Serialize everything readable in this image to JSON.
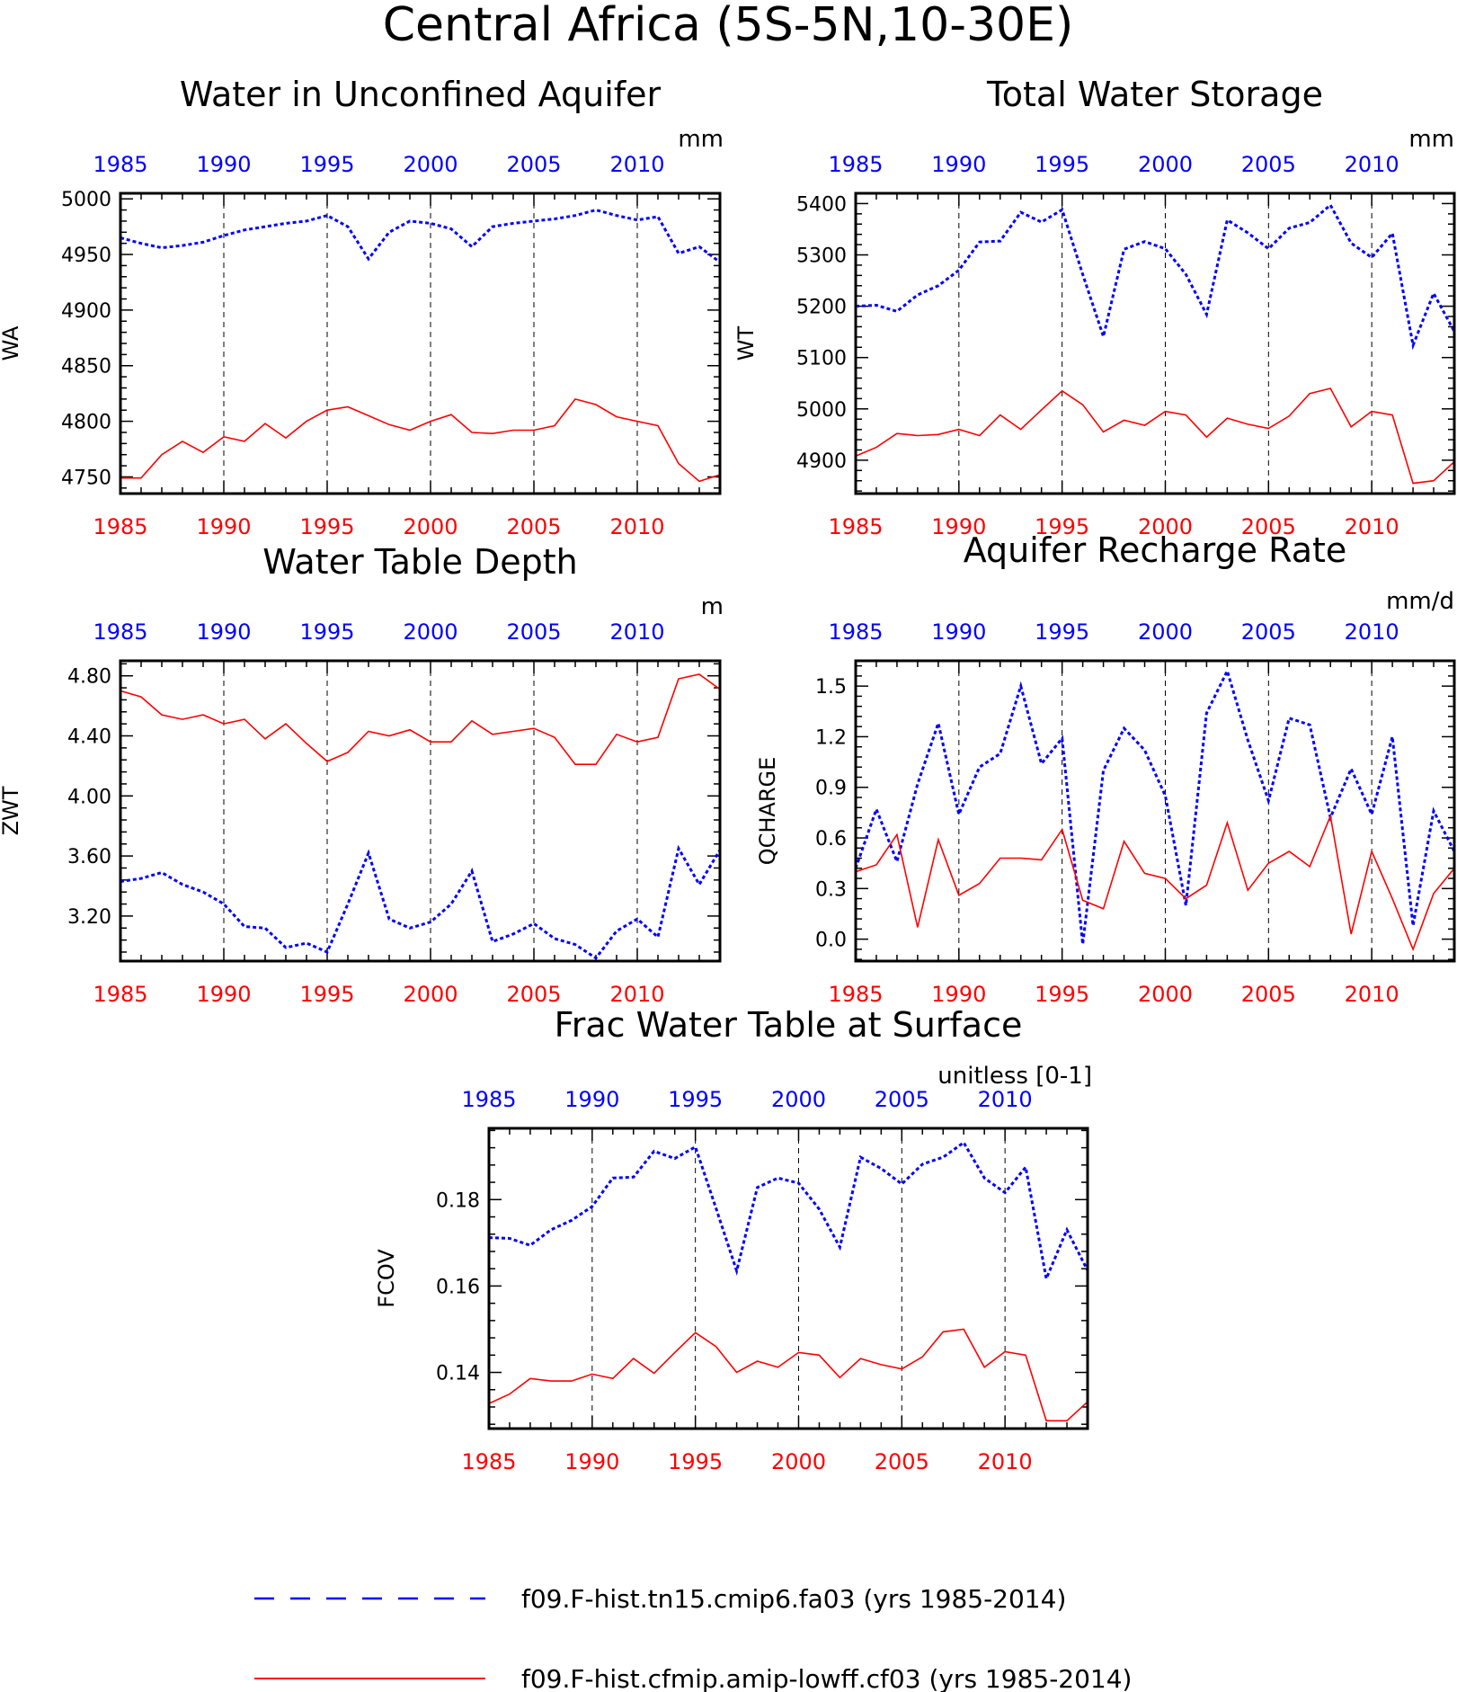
{
  "main_title": "Central Africa (5S-5N,10-30E)",
  "colors": {
    "model_a": "#0000ff",
    "model_b": "#ff0000",
    "grid": "#000000"
  },
  "legend": {
    "model_a_label": "f09.F-hist.tn15.cmip6.fa03 (yrs 1985-2014)",
    "model_b_label": "f09.F-hist.cfmip.amip-lowff.cf03 (yrs 1985-2014)",
    "model_a_style": "dashed",
    "model_b_style": "solid"
  },
  "chart_data": [
    {
      "type": "line",
      "title": "Water in Unconfined Aquifer",
      "units": "mm",
      "ylabel": "WA",
      "xlim": [
        1985,
        2014
      ],
      "ylim": [
        4735,
        5005
      ],
      "yticks": [
        4750,
        4800,
        4850,
        4900,
        4950,
        5000
      ],
      "ytick_labels": [
        "4750",
        "4800",
        "4850",
        "4900",
        "4950",
        "5000"
      ],
      "xticks": [
        1985,
        1990,
        1995,
        2000,
        2005,
        2010
      ],
      "xtick_labels": [
        "1985",
        "1990",
        "1995",
        "2000",
        "2005",
        "2010"
      ],
      "grid_x": [
        1990,
        1995,
        2000,
        2005,
        2010
      ],
      "x": [
        1985,
        1986,
        1987,
        1988,
        1989,
        1990,
        1991,
        1992,
        1993,
        1994,
        1995,
        1996,
        1997,
        1998,
        1999,
        2000,
        2001,
        2002,
        2003,
        2004,
        2005,
        2006,
        2007,
        2008,
        2009,
        2010,
        2011,
        2012,
        2013,
        2014
      ],
      "series": [
        {
          "key": "model_a",
          "values": [
            4965,
            4960,
            4956,
            4958,
            4961,
            4967,
            4972,
            4975,
            4978,
            4980,
            4985,
            4975,
            4946,
            4970,
            4980,
            4978,
            4973,
            4957,
            4975,
            4978,
            4980,
            4982,
            4985,
            4990,
            4985,
            4981,
            4984,
            4951,
            4957,
            4943
          ]
        },
        {
          "key": "model_b",
          "values": [
            4749,
            4749,
            4770,
            4782,
            4772,
            4786,
            4782,
            4798,
            4785,
            4800,
            4810,
            4813,
            4805,
            4797,
            4792,
            4800,
            4806,
            4790,
            4789,
            4792,
            4792,
            4796,
            4820,
            4815,
            4804,
            4800,
            4796,
            4762,
            4746,
            4752
          ]
        }
      ]
    },
    {
      "type": "line",
      "title": "Total Water Storage",
      "units": "mm",
      "ylabel": "WT",
      "xlim": [
        1985,
        2014
      ],
      "ylim": [
        4835,
        5420
      ],
      "yticks": [
        4900,
        5000,
        5100,
        5200,
        5300,
        5400
      ],
      "ytick_labels": [
        "4900",
        "5000",
        "5100",
        "5200",
        "5300",
        "5400"
      ],
      "xticks": [
        1985,
        1990,
        1995,
        2000,
        2005,
        2010
      ],
      "xtick_labels": [
        "1985",
        "1990",
        "1995",
        "2000",
        "2005",
        "2010"
      ],
      "grid_x": [
        1990,
        1995,
        2000,
        2005,
        2010
      ],
      "x": [
        1985,
        1986,
        1987,
        1988,
        1989,
        1990,
        1991,
        1992,
        1993,
        1994,
        1995,
        1996,
        1997,
        1998,
        1999,
        2000,
        2001,
        2002,
        2003,
        2004,
        2005,
        2006,
        2007,
        2008,
        2009,
        2010,
        2011,
        2012,
        2013,
        2014
      ],
      "series": [
        {
          "key": "model_a",
          "values": [
            5200,
            5202,
            5190,
            5222,
            5240,
            5270,
            5325,
            5327,
            5383,
            5364,
            5388,
            5262,
            5141,
            5311,
            5326,
            5312,
            5262,
            5184,
            5368,
            5343,
            5312,
            5352,
            5363,
            5397,
            5323,
            5295,
            5342,
            5124,
            5225,
            5151
          ]
        },
        {
          "key": "model_b",
          "values": [
            4908,
            4925,
            4952,
            4948,
            4950,
            4960,
            4948,
            4988,
            4960,
            4998,
            5035,
            5008,
            4955,
            4978,
            4968,
            4995,
            4988,
            4945,
            4982,
            4970,
            4962,
            4986,
            5030,
            5040,
            4965,
            4995,
            4988,
            4855,
            4860,
            4897
          ]
        }
      ]
    },
    {
      "type": "line",
      "title": "Water Table Depth",
      "units": "m",
      "ylabel": "ZWT",
      "xlim": [
        1985,
        2014
      ],
      "ylim": [
        2.9,
        4.9
      ],
      "yticks": [
        3.2,
        3.6,
        4.0,
        4.4,
        4.8
      ],
      "ytick_labels": [
        "3.20",
        "3.60",
        "4.00",
        "4.40",
        "4.80"
      ],
      "xticks": [
        1985,
        1990,
        1995,
        2000,
        2005,
        2010
      ],
      "xtick_labels": [
        "1985",
        "1990",
        "1995",
        "2000",
        "2005",
        "2010"
      ],
      "grid_x": [
        1990,
        1995,
        2000,
        2005,
        2010
      ],
      "x": [
        1985,
        1986,
        1987,
        1988,
        1989,
        1990,
        1991,
        1992,
        1993,
        1994,
        1995,
        1996,
        1997,
        1998,
        1999,
        2000,
        2001,
        2002,
        2003,
        2004,
        2005,
        2006,
        2007,
        2008,
        2009,
        2010,
        2011,
        2012,
        2013,
        2014
      ],
      "series": [
        {
          "key": "model_a",
          "values": [
            3.43,
            3.45,
            3.49,
            3.41,
            3.36,
            3.28,
            3.13,
            3.12,
            2.99,
            3.02,
            2.96,
            3.28,
            3.62,
            3.18,
            3.12,
            3.16,
            3.28,
            3.5,
            3.03,
            3.08,
            3.15,
            3.05,
            3.01,
            2.92,
            3.1,
            3.18,
            3.06,
            3.65,
            3.41,
            3.64
          ]
        },
        {
          "key": "model_b",
          "values": [
            4.7,
            4.66,
            4.54,
            4.51,
            4.54,
            4.48,
            4.51,
            4.38,
            4.48,
            4.35,
            4.23,
            4.29,
            4.43,
            4.4,
            4.44,
            4.36,
            4.36,
            4.5,
            4.41,
            4.43,
            4.45,
            4.39,
            4.21,
            4.21,
            4.41,
            4.36,
            4.39,
            4.78,
            4.81,
            4.71
          ]
        }
      ]
    },
    {
      "type": "line",
      "title": "Aquifer Recharge Rate",
      "units": "mm/d",
      "ylabel": "QCHARGE",
      "xlim": [
        1985,
        2014
      ],
      "ylim": [
        -0.13,
        1.65
      ],
      "yticks": [
        0.0,
        0.3,
        0.6,
        0.9,
        1.2,
        1.5
      ],
      "ytick_labels": [
        "0.0",
        "0.3",
        "0.6",
        "0.9",
        "1.2",
        "1.5"
      ],
      "xticks": [
        1985,
        1990,
        1995,
        2000,
        2005,
        2010
      ],
      "xtick_labels": [
        "1985",
        "1990",
        "1995",
        "2000",
        "2005",
        "2010"
      ],
      "grid_x": [
        1990,
        1995,
        2000,
        2005,
        2010
      ],
      "x": [
        1985,
        1986,
        1987,
        1988,
        1989,
        1990,
        1991,
        1992,
        1993,
        1994,
        1995,
        1996,
        1997,
        1998,
        1999,
        2000,
        2001,
        2002,
        2003,
        2004,
        2005,
        2006,
        2007,
        2008,
        2009,
        2010,
        2011,
        2012,
        2013,
        2014
      ],
      "series": [
        {
          "key": "model_a",
          "values": [
            0.42,
            0.77,
            0.46,
            0.92,
            1.28,
            0.74,
            1.02,
            1.1,
            1.5,
            1.04,
            1.19,
            -0.03,
            1.0,
            1.25,
            1.12,
            0.85,
            0.2,
            1.34,
            1.59,
            1.18,
            0.82,
            1.31,
            1.27,
            0.72,
            1.01,
            0.74,
            1.2,
            0.08,
            0.76,
            0.52
          ]
        },
        {
          "key": "model_b",
          "values": [
            0.4,
            0.44,
            0.62,
            0.07,
            0.59,
            0.26,
            0.33,
            0.48,
            0.48,
            0.47,
            0.65,
            0.23,
            0.18,
            0.58,
            0.39,
            0.36,
            0.24,
            0.32,
            0.69,
            0.29,
            0.45,
            0.52,
            0.43,
            0.73,
            0.03,
            0.52,
            0.24,
            -0.06,
            0.27,
            0.42
          ]
        }
      ]
    },
    {
      "type": "line",
      "title": "Frac Water Table at Surface",
      "units": "unitless [0-1]",
      "ylabel": "FCOV",
      "xlim": [
        1985,
        2014
      ],
      "ylim": [
        0.127,
        0.1965
      ],
      "yticks": [
        0.14,
        0.16,
        0.18
      ],
      "ytick_labels": [
        "0.14",
        "0.16",
        "0.18"
      ],
      "xticks": [
        1985,
        1990,
        1995,
        2000,
        2005,
        2010
      ],
      "xtick_labels": [
        "1985",
        "1990",
        "1995",
        "2000",
        "2005",
        "2010"
      ],
      "grid_x": [
        1990,
        1995,
        2000,
        2005,
        2010
      ],
      "x": [
        1985,
        1986,
        1987,
        1988,
        1989,
        1990,
        1991,
        1992,
        1993,
        1994,
        1995,
        1996,
        1997,
        1998,
        1999,
        2000,
        2001,
        2002,
        2003,
        2004,
        2005,
        2006,
        2007,
        2008,
        2009,
        2010,
        2011,
        2012,
        2013,
        2014
      ],
      "series": [
        {
          "key": "model_a",
          "values": [
            0.1712,
            0.171,
            0.1694,
            0.173,
            0.1752,
            0.1784,
            0.185,
            0.1852,
            0.1912,
            0.1895,
            0.1922,
            0.178,
            0.1635,
            0.1828,
            0.185,
            0.1838,
            0.1778,
            0.169,
            0.1898,
            0.1872,
            0.1836,
            0.1882,
            0.1898,
            0.1932,
            0.185,
            0.1816,
            0.1875,
            0.1617,
            0.173,
            0.1636
          ]
        },
        {
          "key": "model_b",
          "values": [
            0.1328,
            0.135,
            0.1386,
            0.138,
            0.138,
            0.1396,
            0.1386,
            0.1432,
            0.1398,
            0.1446,
            0.1492,
            0.146,
            0.14,
            0.1426,
            0.1412,
            0.1446,
            0.144,
            0.1388,
            0.1432,
            0.1418,
            0.1408,
            0.1436,
            0.1494,
            0.15,
            0.1412,
            0.1448,
            0.144,
            0.1288,
            0.1288,
            0.1332
          ]
        }
      ]
    }
  ]
}
